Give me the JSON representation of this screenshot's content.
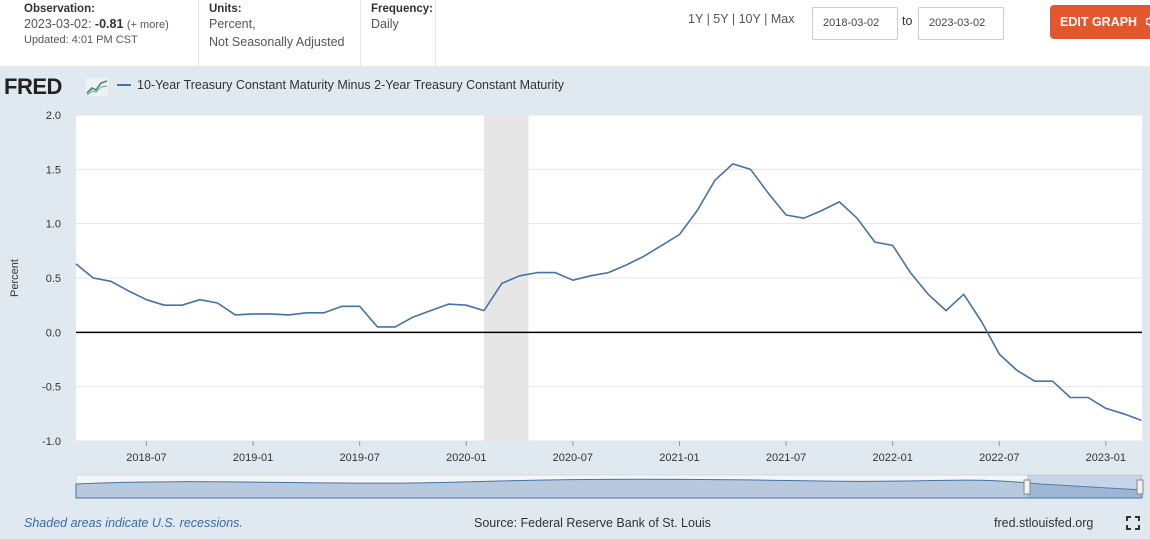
{
  "header": {
    "observation": {
      "heading": "Observation:",
      "date": "2023-03-02:",
      "value": "-0.81",
      "more": "(+ more)",
      "updated": "Updated: 4:01 PM CST"
    },
    "units": {
      "heading": "Units:",
      "line1": "Percent,",
      "line2": "Not Seasonally Adjusted"
    },
    "frequency": {
      "heading": "Frequency:",
      "value": "Daily"
    },
    "ranges": [
      "1Y",
      "5Y",
      "10Y",
      "Max"
    ],
    "range_sep": "|",
    "start_date": "2018-03-02",
    "to_label": "to",
    "end_date": "2023-03-02",
    "edit_button": "EDIT GRAPH"
  },
  "brand": {
    "logo_text": "FRED"
  },
  "legend": {
    "series_label": "10-Year Treasury Constant Maturity Minus 2-Year Treasury Constant Maturity"
  },
  "footer": {
    "recession_note": "Shaded areas indicate U.S. recessions.",
    "source": "Source: Federal Reserve Bank of St. Louis",
    "site": "fred.stlouisfed.org"
  },
  "colors": {
    "series": "#4572a7",
    "accent": "#e3572e",
    "frame": "#e1e9f0",
    "recession": "#e6e6e6"
  },
  "chart_data": {
    "type": "line",
    "title": "10-Year Treasury Constant Maturity Minus 2-Year Treasury Constant Maturity",
    "xlabel": "",
    "ylabel": "Percent",
    "ylim": [
      -1.0,
      2.0
    ],
    "yticks": [
      "2.0",
      "1.5",
      "1.0",
      "0.5",
      "0.0",
      "-0.5",
      "-1.0"
    ],
    "xticks": [
      "2018-07",
      "2019-01",
      "2019-07",
      "2020-01",
      "2020-07",
      "2021-01",
      "2021-07",
      "2022-01",
      "2022-07",
      "2023-01"
    ],
    "x_range": [
      "2018-03-02",
      "2023-03-02"
    ],
    "recessions": [
      {
        "start": "2020-02",
        "end": "2020-04"
      }
    ],
    "zero_line": 0.0,
    "series": [
      {
        "name": "10-Year Treasury Constant Maturity Minus 2-Year Treasury Constant Maturity",
        "x": [
          "2018-03",
          "2018-04",
          "2018-05",
          "2018-06",
          "2018-07",
          "2018-08",
          "2018-09",
          "2018-10",
          "2018-11",
          "2018-12",
          "2019-01",
          "2019-02",
          "2019-03",
          "2019-04",
          "2019-05",
          "2019-06",
          "2019-07",
          "2019-08",
          "2019-09",
          "2019-10",
          "2019-11",
          "2019-12",
          "2020-01",
          "2020-02",
          "2020-03",
          "2020-04",
          "2020-05",
          "2020-06",
          "2020-07",
          "2020-08",
          "2020-09",
          "2020-10",
          "2020-11",
          "2020-12",
          "2021-01",
          "2021-02",
          "2021-03",
          "2021-04",
          "2021-05",
          "2021-06",
          "2021-07",
          "2021-08",
          "2021-09",
          "2021-10",
          "2021-11",
          "2021-12",
          "2022-01",
          "2022-02",
          "2022-03",
          "2022-04",
          "2022-05",
          "2022-06",
          "2022-07",
          "2022-08",
          "2022-09",
          "2022-10",
          "2022-11",
          "2022-12",
          "2023-01",
          "2023-02",
          "2023-03"
        ],
        "values": [
          0.63,
          0.5,
          0.47,
          0.38,
          0.3,
          0.25,
          0.25,
          0.3,
          0.27,
          0.16,
          0.17,
          0.17,
          0.16,
          0.18,
          0.18,
          0.24,
          0.24,
          0.05,
          0.05,
          0.14,
          0.2,
          0.26,
          0.25,
          0.2,
          0.45,
          0.52,
          0.55,
          0.55,
          0.48,
          0.52,
          0.55,
          0.62,
          0.7,
          0.8,
          0.9,
          1.12,
          1.4,
          1.55,
          1.5,
          1.28,
          1.08,
          1.05,
          1.12,
          1.2,
          1.05,
          0.83,
          0.8,
          0.55,
          0.35,
          0.2,
          0.35,
          0.1,
          -0.2,
          -0.35,
          -0.45,
          -0.45,
          -0.6,
          -0.6,
          -0.7,
          -0.75,
          -0.81
        ]
      }
    ]
  }
}
